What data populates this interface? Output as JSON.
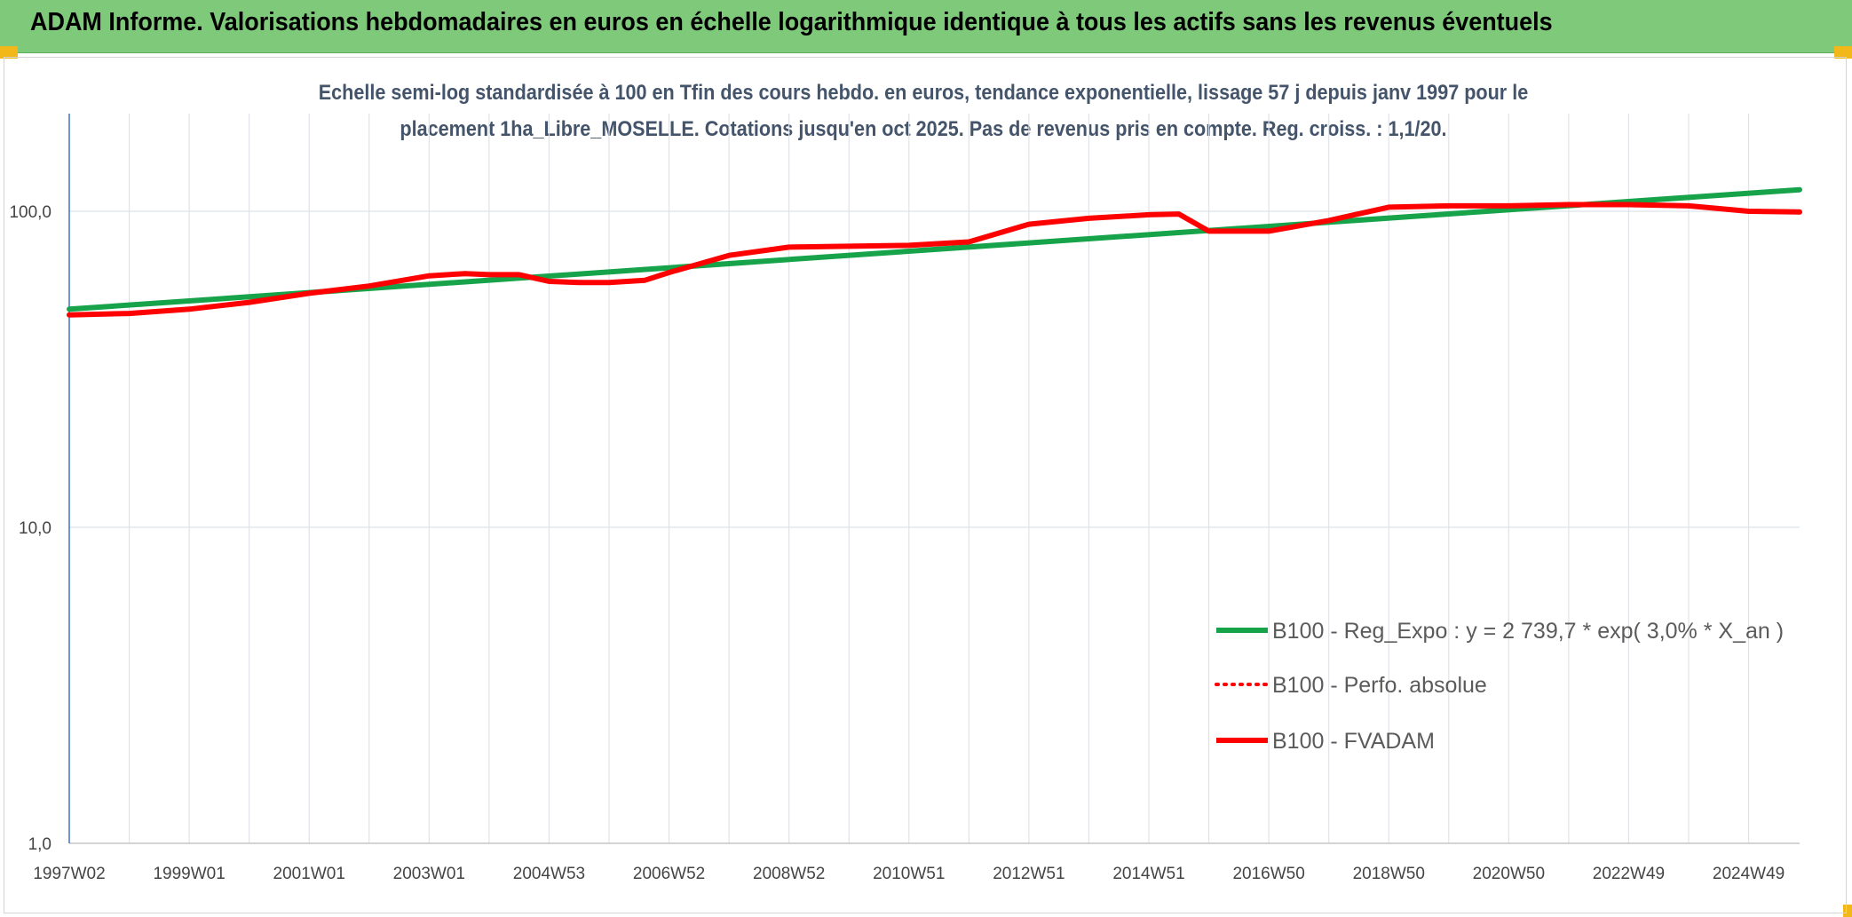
{
  "banner": {
    "title": "ADAM Informe. Valorisations hebdomadaires en euros en échelle logarithmique identique à tous les actifs sans les revenus éventuels"
  },
  "colors": {
    "banner": "#7ec97a",
    "corner_marks": "#f2b81a",
    "regression": "#16a34a",
    "fvadam": "#ff0000",
    "perfo_absolue": "#ff0000",
    "subtitle": "#44546a"
  },
  "chart_data": {
    "type": "line",
    "subtitle_lines": [
      "Echelle semi-log standardisée à 100 en Tfin des cours hebdo. en euros, tendance exponentielle, lissage 57 j depuis janv 1997 pour le",
      "placement 1ha_Libre_MOSELLE. Cotations jusqu'en oct 2025. Pas de revenus pris en compte. Reg. croiss. : 1,1/20."
    ],
    "y_scale": "log",
    "ylim": [
      1,
      200
    ],
    "yticks": [
      {
        "value": 1,
        "label": "1,0"
      },
      {
        "value": 10,
        "label": "10,0"
      },
      {
        "value": 100,
        "label": "100,0"
      }
    ],
    "xlim": [
      1997.0,
      2025.85
    ],
    "xticks": [
      {
        "value": 1997.0,
        "label": "1997W02"
      },
      {
        "value": 1999.0,
        "label": "1999W01"
      },
      {
        "value": 2001.0,
        "label": "2001W01"
      },
      {
        "value": 2003.0,
        "label": "2003W01"
      },
      {
        "value": 2005.0,
        "label": "2004W53"
      },
      {
        "value": 2007.0,
        "label": "2006W52"
      },
      {
        "value": 2009.0,
        "label": "2008W52"
      },
      {
        "value": 2011.0,
        "label": "2010W51"
      },
      {
        "value": 2013.0,
        "label": "2012W51"
      },
      {
        "value": 2015.0,
        "label": "2014W51"
      },
      {
        "value": 2017.0,
        "label": "2016W50"
      },
      {
        "value": 2019.0,
        "label": "2018W50"
      },
      {
        "value": 2021.0,
        "label": "2020W50"
      },
      {
        "value": 2023.0,
        "label": "2022W49"
      },
      {
        "value": 2025.0,
        "label": "2024W49"
      }
    ],
    "grid": true,
    "legend_position": "bottom-right",
    "series": [
      {
        "name": "B100 - Reg_Expo : y = 2 739,7 * exp( 3,0% *  X_an )",
        "style": "solid",
        "x": [
          1997.0,
          2025.85
        ],
        "y": [
          49.0,
          117.0
        ]
      },
      {
        "name": "B100 - Perfo. absolue",
        "style": "dotted",
        "x": [
          1997.0,
          1998.0,
          1999.0,
          2000.0,
          2001.0,
          2002.0,
          2003.0,
          2003.6,
          2004.0,
          2004.5,
          2005.0,
          2005.5,
          2006.0,
          2006.6,
          2007.0,
          2008.0,
          2009.0,
          2010.0,
          2011.0,
          2012.0,
          2013.0,
          2014.0,
          2015.0,
          2015.5,
          2016.0,
          2017.0,
          2018.0,
          2019.0,
          2020.0,
          2021.0,
          2022.0,
          2023.0,
          2024.0,
          2025.0,
          2025.85
        ],
        "y": [
          47.0,
          47.5,
          49.0,
          51.5,
          55.0,
          58.0,
          62.5,
          63.5,
          63.0,
          63.0,
          60.0,
          59.5,
          59.5,
          60.5,
          64.0,
          72.5,
          77.0,
          77.5,
          78.0,
          80.0,
          91.0,
          95.0,
          97.5,
          98.0,
          86.5,
          86.5,
          93.5,
          103.0,
          104.0,
          104.0,
          105.0,
          105.0,
          104.0,
          100.0,
          99.5
        ]
      },
      {
        "name": "B100 - FVADAM",
        "style": "solid",
        "x": [
          1997.0,
          1998.0,
          1999.0,
          2000.0,
          2001.0,
          2002.0,
          2003.0,
          2003.6,
          2004.0,
          2004.5,
          2005.0,
          2005.5,
          2006.0,
          2006.6,
          2007.0,
          2008.0,
          2009.0,
          2010.0,
          2011.0,
          2012.0,
          2013.0,
          2014.0,
          2015.0,
          2015.5,
          2016.0,
          2017.0,
          2018.0,
          2019.0,
          2020.0,
          2021.0,
          2022.0,
          2023.0,
          2024.0,
          2025.0,
          2025.85
        ],
        "y": [
          47.0,
          47.5,
          49.0,
          51.5,
          55.0,
          58.0,
          62.5,
          63.5,
          63.0,
          63.0,
          60.0,
          59.5,
          59.5,
          60.5,
          64.0,
          72.5,
          77.0,
          77.5,
          78.0,
          80.0,
          91.0,
          95.0,
          97.5,
          98.0,
          86.5,
          86.5,
          93.5,
          103.0,
          104.0,
          104.0,
          105.0,
          105.0,
          104.0,
          100.0,
          99.5
        ]
      }
    ]
  }
}
